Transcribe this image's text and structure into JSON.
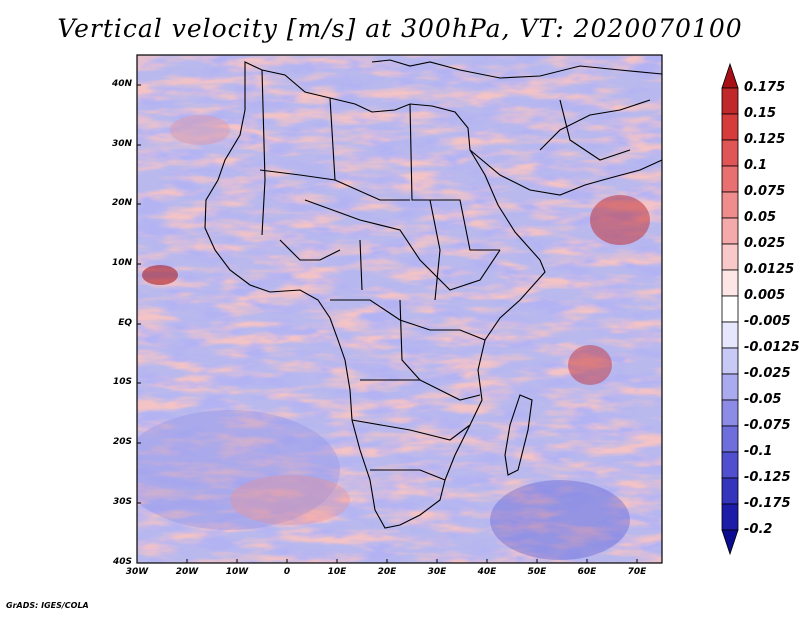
{
  "title": "Vertical velocity [m/s] at 300hPa, VT: 2020070100",
  "credit": "GrADS: IGES/COLA",
  "map": {
    "lon_labels": [
      "30W",
      "20W",
      "10W",
      "0",
      "10E",
      "20E",
      "30E",
      "40E",
      "50E",
      "60E",
      "70E"
    ],
    "lat_labels": [
      "40N",
      "30N",
      "20N",
      "10N",
      "EQ",
      "10S",
      "20S",
      "30S",
      "40S"
    ],
    "region": "Africa",
    "lon_range": [
      -30,
      75
    ],
    "lat_range": [
      -40,
      45
    ]
  },
  "colorbar": {
    "labels": [
      "0.175",
      "0.15",
      "0.125",
      "0.1",
      "0.075",
      "0.05",
      "0.025",
      "0.0125",
      "0.005",
      "-0.005",
      "-0.0125",
      "-0.025",
      "-0.05",
      "-0.075",
      "-0.1",
      "-0.125",
      "-0.175",
      "-0.2"
    ],
    "colors": [
      "#a50f15",
      "#c0282a",
      "#d63c3c",
      "#e05555",
      "#e87070",
      "#ef8c8c",
      "#f4aaaa",
      "#f9c8c8",
      "#fde6e6",
      "#ffffff",
      "#e6e6fd",
      "#c9c9f6",
      "#aaaaee",
      "#8c8ce6",
      "#6e6edc",
      "#4f4fcf",
      "#3434bd",
      "#1c1ca8",
      "#0c0c90"
    ]
  }
}
